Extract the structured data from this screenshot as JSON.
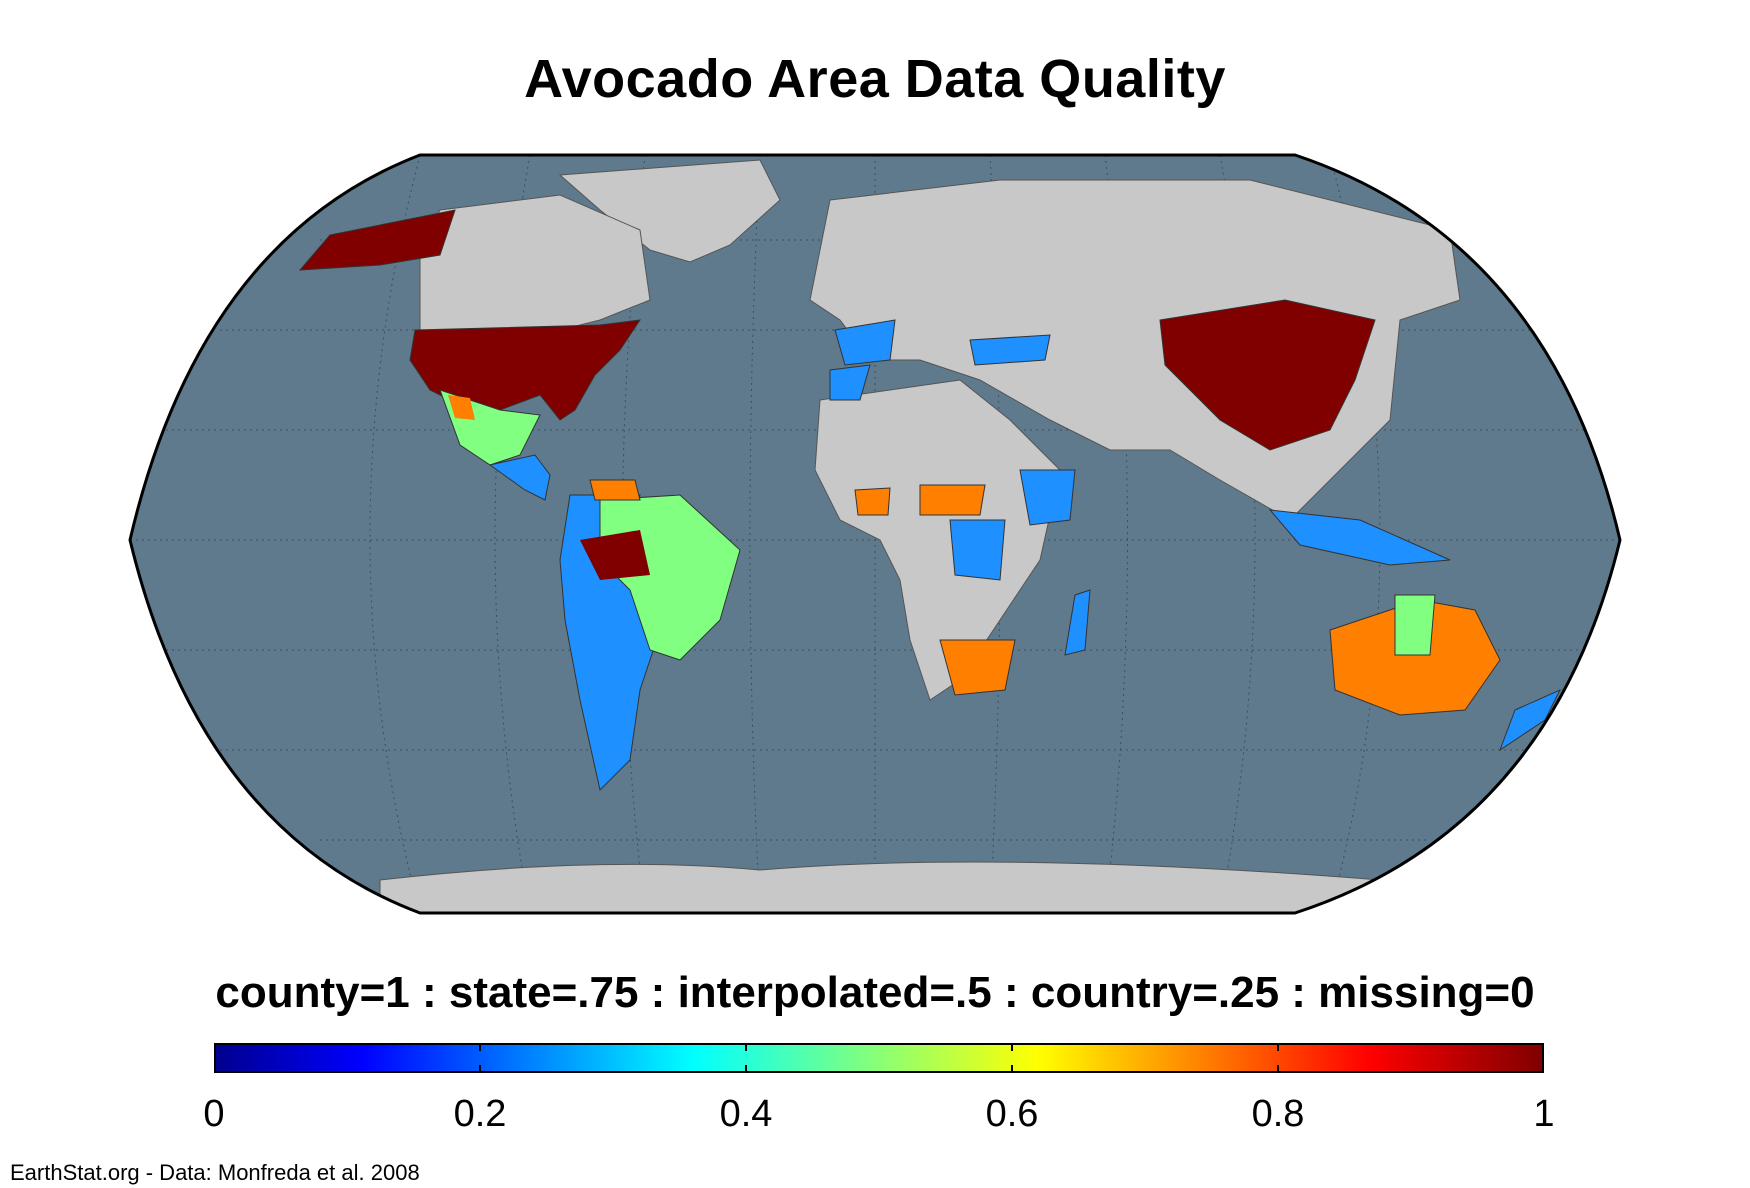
{
  "title": "Avocado Area Data Quality",
  "legend": {
    "label": "county=1 : state=.75 : interpolated=.5 : country=.25 : missing=0",
    "ticks": [
      "0",
      "0.2",
      "0.4",
      "0.6",
      "0.8",
      "1"
    ],
    "tick_values": [
      0,
      0.2,
      0.4,
      0.6,
      0.8,
      1
    ],
    "colormap": "jet",
    "range": [
      0,
      1
    ]
  },
  "credit": "EarthStat.org - Data: Monfreda et al. 2008",
  "colors": {
    "ocean": "#5f7a8c",
    "no_data_land": "#c8c8c8",
    "county": "#800000",
    "state": "#ff7f00",
    "interpolated": "#80ff80",
    "country": "#1e90ff",
    "border": "#000000"
  },
  "regions": [
    {
      "name": "USA",
      "value": 1
    },
    {
      "name": "Alaska",
      "value": 1
    },
    {
      "name": "China",
      "value": 1
    },
    {
      "name": "Mexico",
      "value": 0.5
    },
    {
      "name": "Brazil",
      "value": 0.5
    },
    {
      "name": "Brazil (parts)",
      "value": 1
    },
    {
      "name": "Peru/Bolivia/Chile/Argentina",
      "value": 0.25
    },
    {
      "name": "Australia",
      "value": 0.75
    },
    {
      "name": "South Africa",
      "value": 0.75
    },
    {
      "name": "Spain/Portugal",
      "value": 0.25
    },
    {
      "name": "Morocco",
      "value": 0.25
    },
    {
      "name": "Turkey",
      "value": 0.25
    },
    {
      "name": "Central African Republic",
      "value": 0.75
    },
    {
      "name": "Ghana",
      "value": 0.75
    },
    {
      "name": "Ethiopia/Kenya",
      "value": 0.25
    },
    {
      "name": "DR Congo",
      "value": 0.25
    },
    {
      "name": "Madagascar",
      "value": 0.25
    },
    {
      "name": "Indonesia/Philippines",
      "value": 0.25
    },
    {
      "name": "New Zealand",
      "value": 0.25
    }
  ]
}
